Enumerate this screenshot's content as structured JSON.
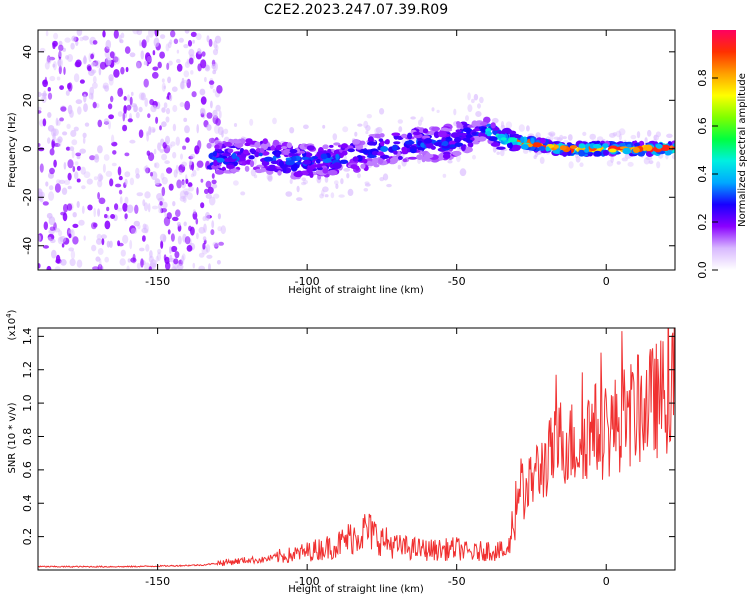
{
  "title": "C2E2.2023.247.07.39.R09",
  "colors": {
    "signal": "#f03030",
    "scatter": "#7a00e8",
    "axis": "#000000"
  },
  "chart_data": [
    {
      "type": "heatmap",
      "xlabel": "Height of straight line (km)",
      "ylabel": "Frequency (Hz)",
      "xlim": [
        -190,
        23
      ],
      "ylim": [
        -50,
        49
      ],
      "x_ticks": [
        "-150",
        "-100",
        "-50",
        "0"
      ],
      "y_ticks": [
        "-40",
        "-20",
        "0",
        "20",
        "40"
      ],
      "ridge": {
        "x": [
          -133,
          -125,
          -115,
          -105,
          -95,
          -85,
          -75,
          -65,
          -55,
          -45,
          -40,
          -35,
          -25,
          -15,
          -5,
          5,
          15,
          22
        ],
        "y": [
          -5,
          -3,
          -3,
          -5,
          -5,
          -3,
          0,
          2,
          2,
          6,
          8,
          4,
          2,
          0,
          0,
          0,
          0,
          0
        ]
      },
      "noise_region": {
        "x": [
          -190,
          -128
        ]
      },
      "colorbar": {
        "label": "Normalized spectral amplitude",
        "ticks": [
          "0.0",
          "0.2",
          "0.4",
          "0.6",
          "0.8"
        ],
        "range": [
          0,
          1
        ],
        "colors": [
          "#ffffff",
          "#d8b8ff",
          "#8a00ff",
          "#1800ff",
          "#00a8ff",
          "#00f0e0",
          "#00ff40",
          "#80ff00",
          "#ffff00",
          "#ffa000",
          "#ff3000",
          "#ff0060"
        ]
      }
    },
    {
      "type": "line",
      "xlabel": "Height of straight line (km)",
      "ylabel": "SNR (10 * v/v)",
      "scale_label": "(x10",
      "scale_exp": "4",
      "scale_close": ")",
      "xlim": [
        -190,
        23
      ],
      "ylim": [
        0,
        1.45
      ],
      "x_ticks": [
        "-150",
        "-100",
        "-50",
        "0"
      ],
      "y_ticks": [
        "0.2",
        "0.4",
        "0.6",
        "0.8",
        "1.0",
        "1.2",
        "1.4"
      ],
      "series": [
        {
          "x": [
            -190,
            -175,
            -160,
            -145,
            -135,
            -130,
            -125,
            -120,
            -115,
            -110,
            -105,
            -100,
            -95,
            -90,
            -85,
            -80,
            -75,
            -70,
            -65,
            -60,
            -55,
            -50,
            -45,
            -40,
            -35,
            -33,
            -31,
            -29,
            -27,
            -25,
            -20,
            -15,
            -10,
            -5,
            0,
            5,
            10,
            15,
            20,
            23
          ],
          "y": [
            0.02,
            0.02,
            0.02,
            0.025,
            0.03,
            0.04,
            0.05,
            0.06,
            0.06,
            0.08,
            0.09,
            0.11,
            0.13,
            0.15,
            0.2,
            0.24,
            0.18,
            0.14,
            0.13,
            0.12,
            0.12,
            0.13,
            0.1,
            0.12,
            0.11,
            0.1,
            0.3,
            0.55,
            0.42,
            0.55,
            0.65,
            0.78,
            0.75,
            0.85,
            0.82,
            0.9,
            0.95,
            1.0,
            1.05,
            1.15
          ]
        }
      ]
    }
  ]
}
